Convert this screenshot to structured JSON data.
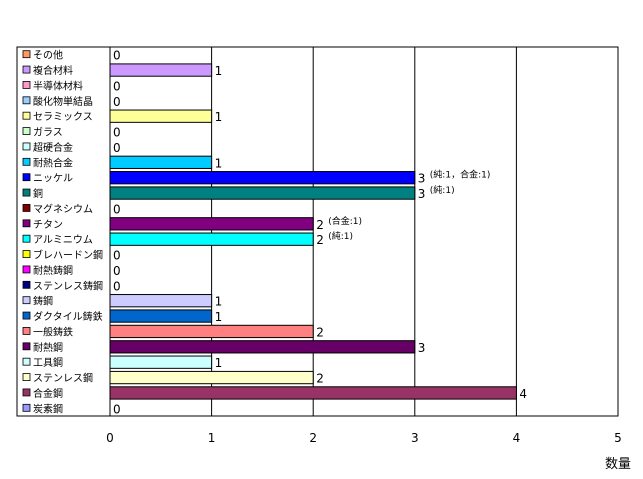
{
  "chart_data": {
    "type": "bar",
    "orientation": "horizontal",
    "categories": [
      "その他",
      "複合材料",
      "半導体材料",
      "酸化物単結晶",
      "セラミックス",
      "ガラス",
      "超硬合金",
      "耐熱合金",
      "ニッケル",
      "銅",
      "マグネシウム",
      "チタン",
      "アルミニウム",
      "ブレハードン鋼",
      "耐熱鋳鋼",
      "ステンレス鋳鋼",
      "鋳鋼",
      "ダクタイル鋳鉄",
      "一般鋳鉄",
      "耐熱鋼",
      "工具鋼",
      "ステンレス鋼",
      "合金鋼",
      "炭素鋼"
    ],
    "values": [
      0,
      1,
      0,
      0,
      1,
      0,
      0,
      1,
      3,
      3,
      0,
      2,
      2,
      0,
      0,
      0,
      1,
      1,
      2,
      3,
      1,
      2,
      4,
      0
    ],
    "colors": [
      "#ff9966",
      "#cc99ff",
      "#ff99cc",
      "#99ccff",
      "#ffff99",
      "#ccffcc",
      "#ccffff",
      "#00ccff",
      "#0000ff",
      "#008080",
      "#800000",
      "#800080",
      "#00ffff",
      "#ffff00",
      "#ff00ff",
      "#000080",
      "#ccccff",
      "#0066cc",
      "#ff8080",
      "#660066",
      "#ccffff",
      "#ffffcc",
      "#993366",
      "#9999ff"
    ],
    "annotations": {
      "8": "(純:1，合金:1)",
      "9": "(純:1)",
      "11": "(合金:1)",
      "12": "(純:1)"
    },
    "xticks": [
      "0",
      "1",
      "2",
      "3",
      "4",
      "5"
    ],
    "xlim": [
      0,
      5
    ],
    "xlabel": "数量",
    "grid": true,
    "legend": "left"
  }
}
